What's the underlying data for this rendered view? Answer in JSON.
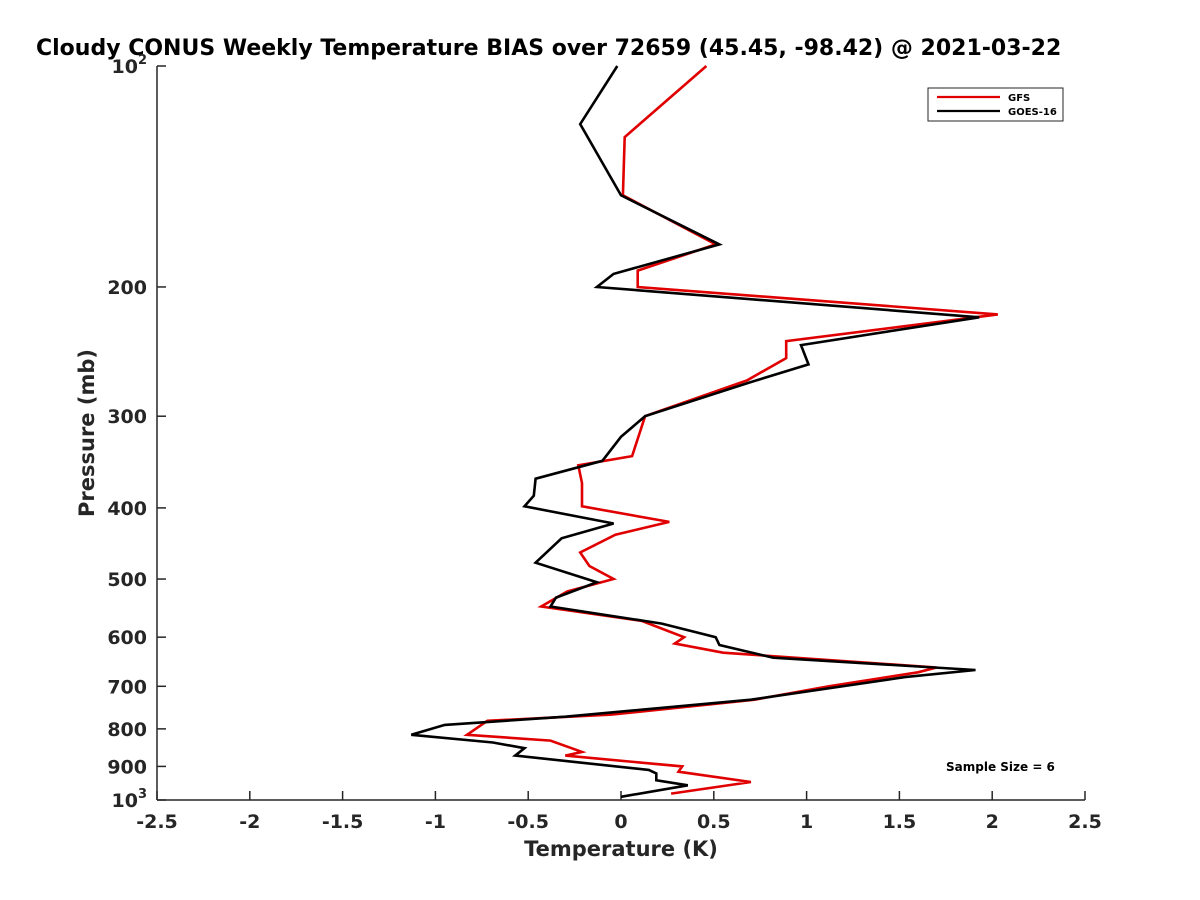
{
  "chart_data": {
    "type": "line",
    "title": "Cloudy CONUS Weekly Temperature BIAS over 72659 (45.45, -98.42) @ 2021-03-22",
    "xlabel": "Temperature (K)",
    "ylabel": "Pressure (mb)",
    "xlim": [
      -2.5,
      2.5
    ],
    "ylim": [
      100,
      1000
    ],
    "y_scale": "log",
    "y_reversed": true,
    "grid": false,
    "legend_position": "top-right",
    "x_ticks": [
      "-2.5",
      "-2",
      "-1.5",
      "-1",
      "-0.5",
      "0",
      "0.5",
      "1",
      "1.5",
      "2",
      "2.5"
    ],
    "x_tick_values": [
      -2.5,
      -2,
      -1.5,
      -1,
      -0.5,
      0,
      0.5,
      1,
      1.5,
      2,
      2.5
    ],
    "y_ticks": [
      {
        "value": 100,
        "base": "10",
        "exp": "2"
      },
      {
        "value": 200,
        "label": "200"
      },
      {
        "value": 300,
        "label": "300"
      },
      {
        "value": 400,
        "label": "400"
      },
      {
        "value": 500,
        "label": "500"
      },
      {
        "value": 600,
        "label": "600"
      },
      {
        "value": 700,
        "label": "700"
      },
      {
        "value": 800,
        "label": "800"
      },
      {
        "value": 900,
        "label": "900"
      },
      {
        "value": 1000,
        "base": "10",
        "exp": "3"
      }
    ],
    "annotation": "Sample Size = 6",
    "series": [
      {
        "name": "GFS",
        "color": "#e00000",
        "points": [
          [
            0.46,
            100
          ],
          [
            0.02,
            125
          ],
          [
            0.01,
            150
          ],
          [
            0.51,
            175
          ],
          [
            0.09,
            190
          ],
          [
            0.09,
            200
          ],
          [
            2.03,
            218
          ],
          [
            0.89,
            237
          ],
          [
            0.89,
            250
          ],
          [
            0.68,
            268
          ],
          [
            0.13,
            300
          ],
          [
            0.06,
            340
          ],
          [
            -0.23,
            350
          ],
          [
            -0.21,
            370
          ],
          [
            -0.21,
            398
          ],
          [
            0.26,
            418
          ],
          [
            -0.03,
            435
          ],
          [
            -0.22,
            460
          ],
          [
            -0.17,
            480
          ],
          [
            -0.04,
            500
          ],
          [
            -0.29,
            520
          ],
          [
            -0.43,
            545
          ],
          [
            0.11,
            570
          ],
          [
            0.34,
            600
          ],
          [
            0.29,
            612
          ],
          [
            0.55,
            630
          ],
          [
            1.7,
            660
          ],
          [
            1.6,
            670
          ],
          [
            1.12,
            700
          ],
          [
            0.72,
            730
          ],
          [
            -0.05,
            765
          ],
          [
            -0.72,
            780
          ],
          [
            -0.83,
            815
          ],
          [
            -0.38,
            830
          ],
          [
            -0.21,
            860
          ],
          [
            -0.3,
            870
          ],
          [
            0.33,
            900
          ],
          [
            0.31,
            915
          ],
          [
            0.7,
            945
          ],
          [
            0.27,
            980
          ]
        ]
      },
      {
        "name": "GOES-16",
        "color": "#000000",
        "points": [
          [
            -0.02,
            100
          ],
          [
            -0.22,
            120
          ],
          [
            0.0,
            150
          ],
          [
            0.53,
            175
          ],
          [
            -0.04,
            192
          ],
          [
            -0.13,
            200
          ],
          [
            1.93,
            220
          ],
          [
            0.97,
            240
          ],
          [
            1.01,
            255
          ],
          [
            0.69,
            270
          ],
          [
            0.13,
            300
          ],
          [
            0.0,
            320
          ],
          [
            -0.1,
            345
          ],
          [
            -0.46,
            365
          ],
          [
            -0.47,
            385
          ],
          [
            -0.52,
            398
          ],
          [
            -0.04,
            420
          ],
          [
            -0.32,
            440
          ],
          [
            -0.46,
            475
          ],
          [
            -0.13,
            505
          ],
          [
            -0.35,
            530
          ],
          [
            -0.38,
            545
          ],
          [
            0.22,
            575
          ],
          [
            0.51,
            600
          ],
          [
            0.53,
            615
          ],
          [
            0.82,
            640
          ],
          [
            1.91,
            665
          ],
          [
            1.53,
            680
          ],
          [
            0.7,
            730
          ],
          [
            -0.3,
            770
          ],
          [
            -0.95,
            790
          ],
          [
            -1.13,
            815
          ],
          [
            -0.69,
            835
          ],
          [
            -0.52,
            850
          ],
          [
            -0.57,
            870
          ],
          [
            0.15,
            910
          ],
          [
            0.19,
            920
          ],
          [
            0.19,
            940
          ],
          [
            0.36,
            955
          ],
          [
            0.0,
            990
          ]
        ]
      }
    ]
  }
}
